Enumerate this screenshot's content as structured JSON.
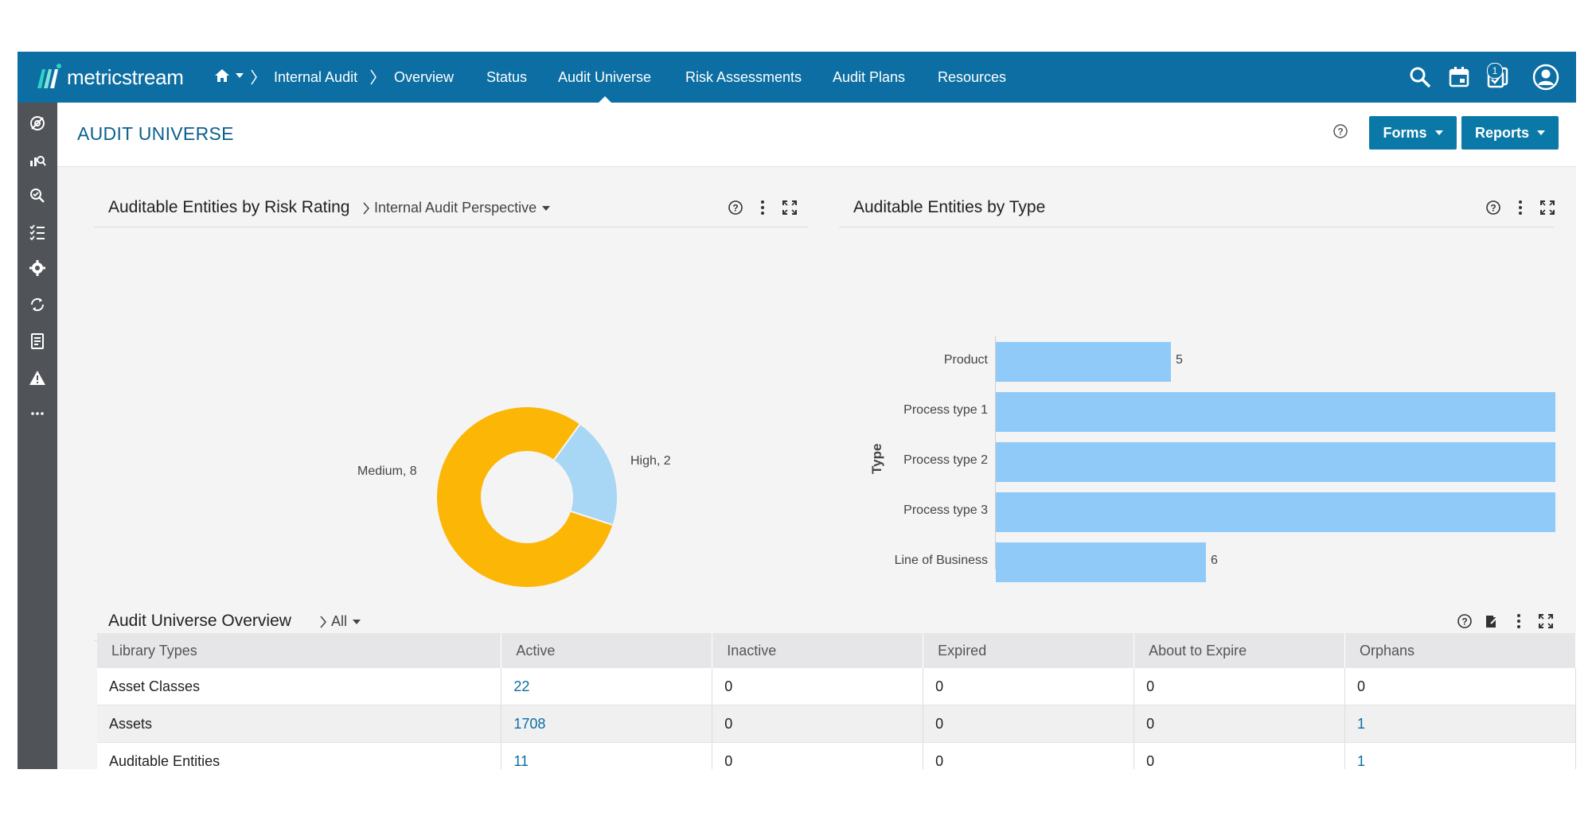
{
  "app": {
    "logo_text": "metricstream"
  },
  "breadcrumb": {
    "module": "Internal Audit"
  },
  "nav": {
    "items": [
      "Overview",
      "Status",
      "Audit Universe",
      "Risk Assessments",
      "Audit Plans",
      "Resources"
    ],
    "active": "Audit Universe"
  },
  "topbar": {
    "notification_count": "1"
  },
  "page": {
    "title": "AUDIT UNIVERSE",
    "forms_label": "Forms",
    "reports_label": "Reports"
  },
  "risk_panel": {
    "title": "Auditable Entities by Risk Rating",
    "perspective": "Internal Audit Perspective"
  },
  "type_panel": {
    "title": "Auditable Entities by Type"
  },
  "overview_panel": {
    "title": "Audit Universe Overview",
    "filter": "All"
  },
  "colors": {
    "medium": "#fbb606",
    "high": "#a8d6f5",
    "bar": "#90caf9",
    "nav": "#0c6ea2"
  },
  "chart_data": [
    {
      "type": "pie",
      "title": "Auditable Entities by Risk Rating",
      "donut": true,
      "slices": [
        {
          "label": "Medium",
          "value": 8,
          "display": "Medium, 8"
        },
        {
          "label": "High",
          "value": 2,
          "display": "High, 2"
        }
      ]
    },
    {
      "type": "bar",
      "orientation": "horizontal",
      "title": "Auditable Entities by Type",
      "ylabel": "Type",
      "categories": [
        "Product",
        "Process type 1",
        "Process type 2",
        "Process type 3",
        "Line of Business"
      ],
      "values": [
        5,
        16,
        16,
        16,
        6
      ],
      "value_labels": [
        "5",
        "",
        "",
        "",
        "6"
      ]
    }
  ],
  "table": {
    "columns": [
      "Library Types",
      "Active",
      "Inactive",
      "Expired",
      "About to Expire",
      "Orphans"
    ],
    "rows": [
      [
        "Asset Classes",
        "22",
        "0",
        "0",
        "0",
        "0"
      ],
      [
        "Assets",
        "1708",
        "0",
        "0",
        "0",
        "1"
      ],
      [
        "Auditable Entities",
        "11",
        "0",
        "0",
        "0",
        "1"
      ]
    ]
  }
}
